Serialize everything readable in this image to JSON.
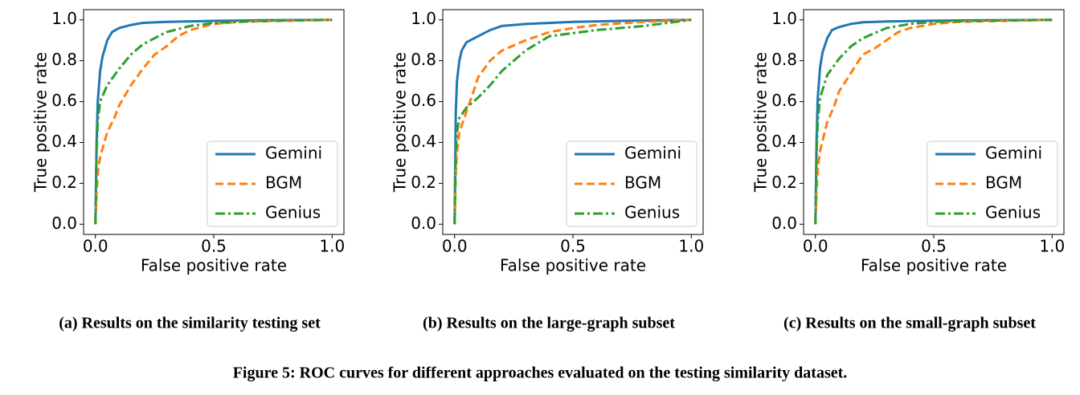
{
  "chart_data": [
    {
      "type": "line",
      "caption": "(a) Results on the similarity testing set",
      "xlabel": "False positive rate",
      "ylabel": "True positive rate",
      "xlim": [
        -0.05,
        1.05
      ],
      "ylim": [
        -0.05,
        1.05
      ],
      "xticks": [
        {
          "value": 0,
          "label": "0.0"
        },
        0.5,
        {
          "value": 1,
          "label": "1.0"
        }
      ],
      "yticks": [
        {
          "value": 0,
          "label": "0.0"
        },
        0.2,
        0.4,
        0.6,
        0.8,
        {
          "value": 1,
          "label": "1.0"
        }
      ],
      "legend": "lower right",
      "series": [
        {
          "name": "Gemini",
          "color": "#1f77b4",
          "linestyle": "solid",
          "x": [
            0,
            0.005,
            0.01,
            0.02,
            0.03,
            0.05,
            0.07,
            0.1,
            0.15,
            0.2,
            0.3,
            0.5,
            0.7,
            1
          ],
          "values": [
            0,
            0.4,
            0.6,
            0.75,
            0.82,
            0.9,
            0.94,
            0.96,
            0.975,
            0.985,
            0.99,
            0.995,
            0.998,
            1
          ]
        },
        {
          "name": "BGM",
          "color": "#ff7f0e",
          "linestyle": "dashed",
          "x": [
            0,
            0.005,
            0.01,
            0.02,
            0.05,
            0.08,
            0.1,
            0.15,
            0.2,
            0.25,
            0.3,
            0.35,
            0.4,
            0.5,
            0.6,
            0.8,
            1
          ],
          "values": [
            0,
            0.15,
            0.25,
            0.33,
            0.45,
            0.52,
            0.58,
            0.68,
            0.76,
            0.83,
            0.87,
            0.92,
            0.95,
            0.98,
            0.99,
            0.995,
            1
          ]
        },
        {
          "name": "Genius",
          "color": "#2ca02c",
          "linestyle": "dashdot",
          "x": [
            0,
            0.005,
            0.01,
            0.02,
            0.05,
            0.1,
            0.15,
            0.2,
            0.3,
            0.4,
            0.5,
            0.7,
            1
          ],
          "values": [
            0,
            0.35,
            0.5,
            0.6,
            0.68,
            0.76,
            0.83,
            0.88,
            0.94,
            0.97,
            0.985,
            0.995,
            1
          ]
        }
      ]
    },
    {
      "type": "line",
      "caption": "(b) Results on the large-graph subset",
      "xlabel": "False positive rate",
      "ylabel": "True positive rate",
      "xlim": [
        -0.05,
        1.05
      ],
      "ylim": [
        -0.05,
        1.05
      ],
      "xticks": [
        {
          "value": 0,
          "label": "0.0"
        },
        0.5,
        {
          "value": 1,
          "label": "1.0"
        }
      ],
      "yticks": [
        {
          "value": 0,
          "label": "0.0"
        },
        0.2,
        0.4,
        0.6,
        0.8,
        {
          "value": 1,
          "label": "1.0"
        }
      ],
      "legend": "lower right",
      "series": [
        {
          "name": "Gemini",
          "color": "#1f77b4",
          "linestyle": "solid",
          "x": [
            0,
            0.005,
            0.01,
            0.02,
            0.03,
            0.05,
            0.1,
            0.15,
            0.2,
            0.3,
            0.5,
            0.7,
            1
          ],
          "values": [
            0,
            0.55,
            0.7,
            0.8,
            0.85,
            0.89,
            0.92,
            0.95,
            0.97,
            0.98,
            0.99,
            0.995,
            1
          ]
        },
        {
          "name": "BGM",
          "color": "#ff7f0e",
          "linestyle": "dashed",
          "x": [
            0,
            0.005,
            0.01,
            0.02,
            0.05,
            0.08,
            0.1,
            0.15,
            0.2,
            0.3,
            0.4,
            0.5,
            0.6,
            0.8,
            1
          ],
          "values": [
            0,
            0.25,
            0.35,
            0.45,
            0.55,
            0.65,
            0.72,
            0.8,
            0.85,
            0.9,
            0.94,
            0.96,
            0.975,
            0.99,
            1
          ]
        },
        {
          "name": "Genius",
          "color": "#2ca02c",
          "linestyle": "dashdot",
          "x": [
            0,
            0.005,
            0.01,
            0.02,
            0.05,
            0.1,
            0.15,
            0.2,
            0.3,
            0.4,
            0.6,
            0.8,
            1
          ],
          "values": [
            0,
            0.35,
            0.45,
            0.52,
            0.57,
            0.62,
            0.68,
            0.75,
            0.85,
            0.92,
            0.95,
            0.97,
            1
          ]
        }
      ]
    },
    {
      "type": "line",
      "caption": "(c) Results on the small-graph subset",
      "xlabel": "False positive rate",
      "ylabel": "True positive rate",
      "xlim": [
        -0.05,
        1.05
      ],
      "ylim": [
        -0.05,
        1.05
      ],
      "xticks": [
        {
          "value": 0,
          "label": "0.0"
        },
        0.5,
        {
          "value": 1,
          "label": "1.0"
        }
      ],
      "yticks": [
        {
          "value": 0,
          "label": "0.0"
        },
        0.2,
        0.4,
        0.6,
        0.8,
        {
          "value": 1,
          "label": "1.0"
        }
      ],
      "legend": "lower right",
      "series": [
        {
          "name": "Gemini",
          "color": "#1f77b4",
          "linestyle": "solid",
          "x": [
            0,
            0.005,
            0.01,
            0.02,
            0.03,
            0.05,
            0.07,
            0.1,
            0.15,
            0.2,
            0.3,
            0.5,
            0.7,
            1
          ],
          "values": [
            0,
            0.42,
            0.62,
            0.77,
            0.84,
            0.91,
            0.95,
            0.965,
            0.98,
            0.988,
            0.992,
            0.996,
            0.998,
            1
          ]
        },
        {
          "name": "BGM",
          "color": "#ff7f0e",
          "linestyle": "dashed",
          "x": [
            0,
            0.005,
            0.01,
            0.02,
            0.05,
            0.08,
            0.1,
            0.15,
            0.2,
            0.25,
            0.3,
            0.35,
            0.4,
            0.5,
            0.6,
            0.8,
            1
          ],
          "values": [
            0,
            0.17,
            0.27,
            0.36,
            0.5,
            0.58,
            0.65,
            0.74,
            0.83,
            0.86,
            0.9,
            0.94,
            0.96,
            0.98,
            0.99,
            0.995,
            1
          ]
        },
        {
          "name": "Genius",
          "color": "#2ca02c",
          "linestyle": "dashdot",
          "x": [
            0,
            0.005,
            0.01,
            0.02,
            0.05,
            0.1,
            0.15,
            0.2,
            0.3,
            0.4,
            0.5,
            0.7,
            1
          ],
          "values": [
            0,
            0.35,
            0.5,
            0.62,
            0.73,
            0.81,
            0.87,
            0.91,
            0.96,
            0.98,
            0.99,
            0.996,
            1
          ]
        }
      ]
    }
  ],
  "figure_caption": "Figure 5: ROC curves for different approaches evaluated on the testing similarity dataset."
}
